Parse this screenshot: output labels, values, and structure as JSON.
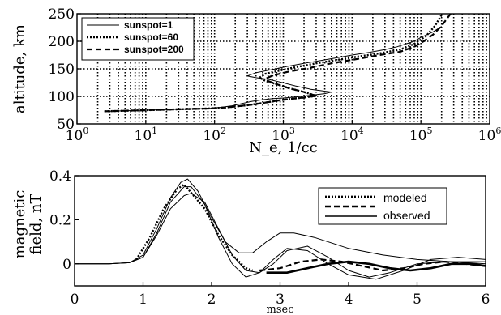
{
  "chart_data": [
    {
      "type": "line",
      "xscale": "log",
      "xlim": [
        1,
        1000000
      ],
      "ylim": [
        50,
        250
      ],
      "xlabel": "N_e, 1/cc",
      "ylabel": "altitude, km",
      "xticks": [
        1,
        10,
        100,
        1000,
        10000,
        100000,
        1000000
      ],
      "xtick_labels": [
        {
          "base": "10",
          "exp": "0"
        },
        {
          "base": "10",
          "exp": "1"
        },
        {
          "base": "10",
          "exp": "2"
        },
        {
          "base": "10",
          "exp": "3"
        },
        {
          "base": "10",
          "exp": "4"
        },
        {
          "base": "10",
          "exp": "5"
        },
        {
          "base": "10",
          "exp": "6"
        }
      ],
      "yticks": [
        50,
        100,
        150,
        200,
        250
      ],
      "ytick_labels": [
        "50",
        "100",
        "150",
        "200",
        "250"
      ],
      "grid": true,
      "legend_position": "top-left",
      "series": [
        {
          "name": "sunspot=1",
          "style": "solid",
          "x": [
            2.5,
            5,
            10,
            20,
            40,
            80,
            120,
            180,
            250,
            350,
            500,
            700,
            1000,
            1500,
            2500,
            4000,
            5000,
            2500,
            1500,
            900,
            600,
            400,
            300,
            400,
            700,
            1200,
            2000,
            3500,
            6000,
            10000,
            18000,
            30000,
            45000,
            60000,
            80000,
            100000,
            150000,
            200000
          ],
          "y": [
            73,
            74,
            75,
            76,
            77,
            78,
            80,
            83,
            87,
            91,
            94,
            96,
            97,
            99,
            102,
            105,
            108,
            113,
            119,
            126,
            131,
            134,
            137,
            143,
            149,
            155,
            160,
            165,
            170,
            175,
            180,
            185,
            190,
            195,
            200,
            207,
            217,
            227
          ]
        },
        {
          "name": "sunspot=60",
          "style": "dotted",
          "x": [
            2.5,
            5,
            10,
            20,
            40,
            80,
            150,
            300,
            500,
            800,
            1200,
            2000,
            3000,
            2000,
            1200,
            800,
            550,
            450,
            550,
            900,
            1500,
            3000,
            6000,
            12000,
            25000,
            50000,
            80000,
            120000,
            160000,
            200000
          ],
          "y": [
            73,
            74,
            75,
            76,
            77,
            78,
            80,
            84,
            88,
            92,
            95,
            98,
            101,
            108,
            115,
            122,
            128,
            134,
            141,
            147,
            153,
            160,
            166,
            172,
            178,
            185,
            195,
            210,
            228,
            248
          ]
        },
        {
          "name": "sunspot=200",
          "style": "dashed",
          "x": [
            2.5,
            5,
            10,
            20,
            40,
            80,
            150,
            300,
            500,
            800,
            1200,
            2000,
            3000,
            2000,
            1200,
            800,
            600,
            550,
            700,
            1200,
            2500,
            5000,
            12000,
            25000,
            50000,
            80000,
            110000,
            150000,
            200000,
            270000
          ],
          "y": [
            73,
            74,
            75,
            76,
            77,
            78,
            80,
            84,
            88,
            92,
            95,
            98,
            101,
            108,
            115,
            122,
            128,
            132,
            138,
            145,
            152,
            160,
            168,
            175,
            181,
            190,
            200,
            212,
            228,
            250
          ]
        }
      ]
    },
    {
      "type": "line",
      "xlim": [
        0,
        6
      ],
      "ylim": [
        -0.1,
        0.4
      ],
      "xlabel": "msec",
      "ylabel": "magnetic field, nT",
      "xticks": [
        0,
        1,
        2,
        3,
        4,
        5,
        6
      ],
      "xtick_labels": [
        "0",
        "1",
        "2",
        "3",
        "4",
        "5",
        "6"
      ],
      "yticks": [
        0,
        0.2,
        0.4
      ],
      "ytick_labels": [
        "0",
        "0.2",
        "0.4"
      ],
      "grid": false,
      "legend_position": "top-right",
      "legend": [
        {
          "label": "modeled",
          "style": "dotted"
        },
        {
          "label": "modeled",
          "style": "dashed"
        },
        {
          "label": "observed",
          "style": "solid"
        }
      ],
      "series": [
        {
          "name": "observed",
          "style": "solid",
          "x": [
            0,
            0.5,
            0.8,
            1.0,
            1.2,
            1.4,
            1.55,
            1.65,
            1.8,
            2.0,
            2.2,
            2.4,
            2.6,
            2.8,
            3.0,
            3.2,
            3.5,
            3.8,
            4.0,
            4.5,
            5.0,
            5.5,
            6.0
          ],
          "y": [
            0,
            0,
            0.005,
            0.04,
            0.16,
            0.3,
            0.37,
            0.385,
            0.33,
            0.21,
            0.1,
            0.05,
            0.05,
            0.1,
            0.14,
            0.14,
            0.12,
            0.09,
            0.07,
            0.04,
            0.02,
            0.01,
            0.01
          ]
        },
        {
          "name": "observed",
          "style": "solid",
          "x": [
            0,
            0.5,
            0.8,
            1.0,
            1.2,
            1.4,
            1.6,
            1.7,
            1.9,
            2.1,
            2.3,
            2.5,
            2.7,
            2.9,
            3.1,
            3.4,
            3.7,
            4.0,
            4.4,
            4.8,
            5.2,
            5.6,
            6.0
          ],
          "y": [
            0,
            0,
            0.005,
            0.03,
            0.14,
            0.28,
            0.35,
            0.35,
            0.27,
            0.12,
            0.0,
            -0.06,
            -0.04,
            0.02,
            0.07,
            0.06,
            0.0,
            -0.05,
            -0.07,
            -0.03,
            0.02,
            0.03,
            0.02
          ]
        },
        {
          "name": "observed",
          "style": "solid",
          "x": [
            0,
            0.5,
            0.8,
            1.0,
            1.2,
            1.4,
            1.6,
            1.7,
            1.9,
            2.1,
            2.3,
            2.5,
            2.7,
            2.9,
            3.1,
            3.4,
            3.7,
            4.0,
            4.3,
            4.6,
            5.0,
            5.5,
            6.0
          ],
          "y": [
            0,
            0,
            0.005,
            0.03,
            0.13,
            0.25,
            0.31,
            0.32,
            0.28,
            0.16,
            0.04,
            -0.03,
            -0.04,
            0.0,
            0.06,
            0.08,
            0.03,
            -0.03,
            -0.06,
            -0.04,
            0.0,
            0.01,
            0.0
          ]
        },
        {
          "name": "modeled",
          "style": "dotted",
          "x": [
            0.9,
            1.1,
            1.3,
            1.5,
            1.6,
            1.9,
            2.1,
            2.3,
            2.5,
            2.6
          ],
          "y": [
            0.02,
            0.12,
            0.25,
            0.34,
            0.36,
            0.25,
            0.13,
            0.04,
            -0.02,
            -0.03
          ]
        },
        {
          "name": "modeled",
          "style": "dashed",
          "x": [
            2.7,
            3.0,
            3.3,
            3.6,
            3.9,
            4.2,
            4.5,
            4.8,
            5.1,
            5.4,
            5.7,
            6.0
          ],
          "y": [
            -0.03,
            -0.02,
            0.01,
            0.02,
            0.01,
            -0.01,
            -0.03,
            -0.02,
            0.0,
            0.01,
            0.0,
            -0.01
          ]
        },
        {
          "name": "modeled",
          "style": "solid-thick",
          "x": [
            2.8,
            3.1,
            3.4,
            3.7,
            4.0,
            4.3,
            4.6,
            4.9,
            5.2,
            5.5,
            5.8,
            6.0
          ],
          "y": [
            -0.04,
            -0.04,
            -0.02,
            0.0,
            0.01,
            0.0,
            -0.02,
            -0.03,
            -0.02,
            0.0,
            0.0,
            -0.01
          ]
        }
      ]
    }
  ]
}
